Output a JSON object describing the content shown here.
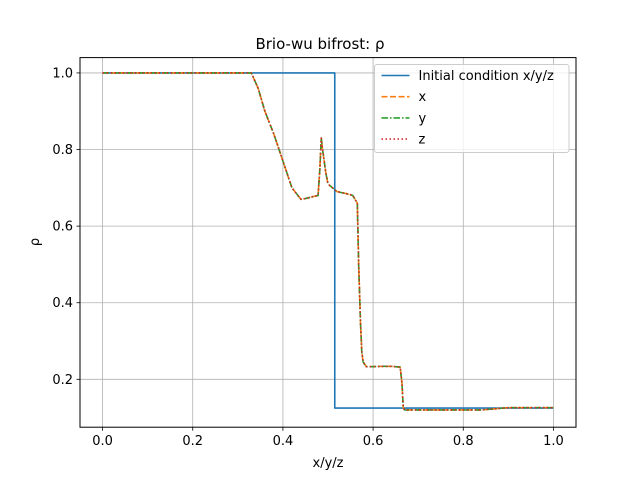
{
  "chart_data": {
    "type": "line",
    "title": "Brio-wu bifrost: ρ",
    "xlabel": "x/y/z",
    "ylabel": "ρ",
    "xlim": [
      -0.05,
      1.05
    ],
    "ylim": [
      0.075,
      1.04
    ],
    "xticks": [
      0.0,
      0.2,
      0.4,
      0.6,
      0.8,
      1.0
    ],
    "xtick_labels": [
      "0.0",
      "0.2",
      "0.4",
      "0.6",
      "0.8",
      "1.0"
    ],
    "yticks": [
      0.2,
      0.4,
      0.6,
      0.8,
      1.0
    ],
    "ytick_labels": [
      "0.2",
      "0.4",
      "0.6",
      "0.8",
      "1.0"
    ],
    "grid": true,
    "legend_position": "top-right",
    "series": [
      {
        "name": "Initial condition x/y/z",
        "color": "#1f77b4",
        "dash": "solid",
        "x": [
          0.0,
          0.515,
          0.515,
          1.0
        ],
        "y": [
          1.0,
          1.0,
          0.125,
          0.125
        ]
      },
      {
        "name": "x",
        "color": "#ff7f0e",
        "dash": "dashed",
        "x": [
          0.0,
          0.33,
          0.345,
          0.36,
          0.38,
          0.4,
          0.42,
          0.44,
          0.45,
          0.46,
          0.47,
          0.478,
          0.482,
          0.485,
          0.488,
          0.495,
          0.5,
          0.51,
          0.52,
          0.54,
          0.555,
          0.565,
          0.568,
          0.572,
          0.575,
          0.578,
          0.585,
          0.6,
          0.62,
          0.64,
          0.66,
          0.664,
          0.667,
          0.67,
          0.7,
          0.75,
          0.8,
          0.84,
          0.87,
          0.9,
          0.95,
          1.0
        ],
        "y": [
          1.0,
          1.0,
          0.96,
          0.9,
          0.84,
          0.77,
          0.7,
          0.67,
          0.672,
          0.675,
          0.678,
          0.68,
          0.75,
          0.83,
          0.8,
          0.74,
          0.71,
          0.7,
          0.69,
          0.685,
          0.68,
          0.66,
          0.5,
          0.35,
          0.27,
          0.245,
          0.233,
          0.233,
          0.234,
          0.234,
          0.232,
          0.19,
          0.125,
          0.12,
          0.12,
          0.12,
          0.12,
          0.12,
          0.123,
          0.126,
          0.126,
          0.126
        ]
      },
      {
        "name": "y",
        "color": "#2ca02c",
        "dash": "dashdot",
        "x": [
          0.0,
          0.33,
          0.345,
          0.36,
          0.38,
          0.4,
          0.42,
          0.44,
          0.45,
          0.46,
          0.47,
          0.478,
          0.482,
          0.485,
          0.488,
          0.495,
          0.5,
          0.51,
          0.52,
          0.54,
          0.555,
          0.565,
          0.568,
          0.572,
          0.575,
          0.578,
          0.585,
          0.6,
          0.62,
          0.64,
          0.66,
          0.664,
          0.667,
          0.67,
          0.7,
          0.75,
          0.8,
          0.84,
          0.87,
          0.9,
          0.95,
          1.0
        ],
        "y": [
          1.0,
          1.0,
          0.96,
          0.9,
          0.84,
          0.77,
          0.7,
          0.67,
          0.672,
          0.675,
          0.678,
          0.68,
          0.75,
          0.83,
          0.8,
          0.74,
          0.71,
          0.7,
          0.69,
          0.685,
          0.68,
          0.66,
          0.5,
          0.35,
          0.27,
          0.245,
          0.233,
          0.233,
          0.234,
          0.234,
          0.232,
          0.19,
          0.125,
          0.12,
          0.12,
          0.12,
          0.12,
          0.12,
          0.123,
          0.126,
          0.126,
          0.126
        ]
      },
      {
        "name": "z",
        "color": "#d62728",
        "dash": "dotted",
        "x": [
          0.0,
          0.33,
          0.345,
          0.36,
          0.38,
          0.4,
          0.42,
          0.44,
          0.45,
          0.46,
          0.47,
          0.478,
          0.482,
          0.485,
          0.488,
          0.495,
          0.5,
          0.51,
          0.52,
          0.54,
          0.555,
          0.565,
          0.568,
          0.572,
          0.575,
          0.578,
          0.585,
          0.6,
          0.62,
          0.64,
          0.66,
          0.664,
          0.667,
          0.67,
          0.7,
          0.75,
          0.8,
          0.84,
          0.87,
          0.9,
          0.95,
          1.0
        ],
        "y": [
          1.0,
          1.0,
          0.96,
          0.9,
          0.84,
          0.77,
          0.7,
          0.67,
          0.672,
          0.675,
          0.678,
          0.68,
          0.75,
          0.83,
          0.8,
          0.74,
          0.71,
          0.7,
          0.69,
          0.685,
          0.68,
          0.66,
          0.5,
          0.35,
          0.27,
          0.245,
          0.233,
          0.233,
          0.234,
          0.234,
          0.232,
          0.19,
          0.125,
          0.12,
          0.12,
          0.12,
          0.12,
          0.12,
          0.123,
          0.126,
          0.126,
          0.126
        ]
      }
    ]
  }
}
